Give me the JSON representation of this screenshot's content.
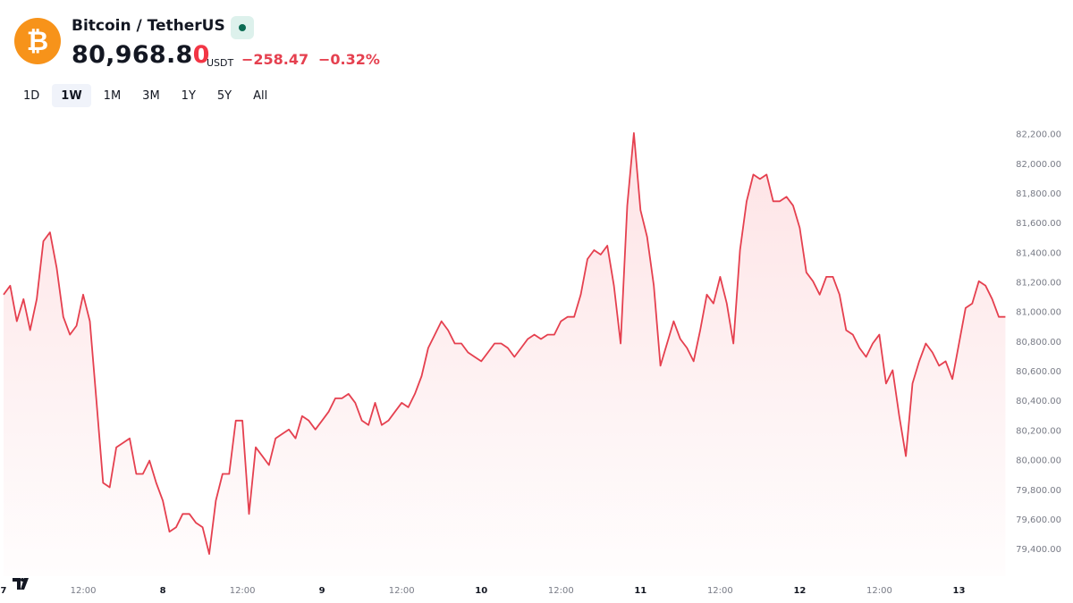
{
  "header": {
    "symbol": "Bitcoin / TetherUS",
    "logo": "₿",
    "price": "80,968.8",
    "price_tick_digit": "0",
    "currency": "USDT",
    "change": "−258.47",
    "change_percent": "−0.32%"
  },
  "ranges": {
    "items": [
      "1D",
      "1W",
      "1M",
      "3M",
      "1Y",
      "5Y",
      "All"
    ],
    "active": "1W"
  },
  "chart_data": {
    "type": "area",
    "color": "#e5404f",
    "grid": false,
    "categories": [
      "7",
      null,
      null,
      null,
      null,
      null,
      null,
      null,
      null,
      null,
      null,
      null,
      "12:00",
      null,
      null,
      null,
      null,
      null,
      null,
      null,
      null,
      null,
      null,
      null,
      "8",
      null,
      null,
      null,
      null,
      null,
      null,
      null,
      null,
      null,
      null,
      null,
      "12:00",
      null,
      null,
      null,
      null,
      null,
      null,
      null,
      null,
      null,
      null,
      null,
      "9",
      null,
      null,
      null,
      null,
      null,
      null,
      null,
      null,
      null,
      null,
      null,
      "12:00",
      null,
      null,
      null,
      null,
      null,
      null,
      null,
      null,
      null,
      null,
      null,
      "10",
      null,
      null,
      null,
      null,
      null,
      null,
      null,
      null,
      null,
      null,
      null,
      "12:00",
      null,
      null,
      null,
      null,
      null,
      null,
      null,
      null,
      null,
      null,
      null,
      "11",
      null,
      null,
      null,
      null,
      null,
      null,
      null,
      null,
      null,
      null,
      null,
      "12:00",
      null,
      null,
      null,
      null,
      null,
      null,
      null,
      null,
      null,
      null,
      null,
      "12",
      null,
      null,
      null,
      null,
      null,
      null,
      null,
      null,
      null,
      null,
      null,
      "12:00",
      null,
      null,
      null,
      null,
      null,
      null,
      null,
      null,
      null,
      null,
      null,
      "13",
      null,
      null,
      null,
      null,
      null,
      null,
      null
    ],
    "values": [
      81120,
      81180,
      80940,
      81090,
      80880,
      81090,
      81480,
      81540,
      81300,
      80970,
      80850,
      80910,
      81120,
      80940,
      80400,
      79850,
      79820,
      80090,
      80120,
      80150,
      79910,
      79910,
      80000,
      79850,
      79730,
      79520,
      79550,
      79640,
      79640,
      79580,
      79550,
      79370,
      79730,
      79910,
      79910,
      80270,
      80270,
      79640,
      80090,
      80030,
      79970,
      80150,
      80180,
      80210,
      80150,
      80300,
      80270,
      80210,
      80270,
      80330,
      80420,
      80420,
      80450,
      80390,
      80270,
      80240,
      80390,
      80240,
      80270,
      80330,
      80390,
      80360,
      80450,
      80570,
      80760,
      80850,
      80940,
      80880,
      80790,
      80790,
      80730,
      80700,
      80670,
      80730,
      80790,
      80790,
      80760,
      80700,
      80760,
      80820,
      80850,
      80820,
      80850,
      80850,
      80940,
      80970,
      80970,
      81120,
      81360,
      81420,
      81390,
      81450,
      81180,
      80790,
      81720,
      82210,
      81690,
      81510,
      81180,
      80640,
      80790,
      80940,
      80820,
      80760,
      80670,
      80880,
      81120,
      81060,
      81240,
      81060,
      80790,
      81420,
      81750,
      81930,
      81900,
      81930,
      81750,
      81750,
      81780,
      81720,
      81570,
      81270,
      81210,
      81120,
      81240,
      81240,
      81120,
      80880,
      80850,
      80760,
      80700,
      80790,
      80850,
      80520,
      80610,
      80300,
      80030,
      80520,
      80670,
      80790,
      80730,
      80640,
      80670,
      80550,
      80790,
      81030,
      81060,
      81210,
      81180,
      81090,
      80970,
      80970
    ],
    "ylim": [
      79220,
      82300
    ],
    "yticks": [
      {
        "value": 79400,
        "label": "79,400.00"
      },
      {
        "value": 79600,
        "label": "79,600.00"
      },
      {
        "value": 79800,
        "label": "79,800.00"
      },
      {
        "value": 80000,
        "label": "80,000.00"
      },
      {
        "value": 80200,
        "label": "80,200.00"
      },
      {
        "value": 80400,
        "label": "80,400.00"
      },
      {
        "value": 80600,
        "label": "80,600.00"
      },
      {
        "value": 80800,
        "label": "80,800.00"
      },
      {
        "value": 81000,
        "label": "81,000.00"
      },
      {
        "value": 81200,
        "label": "81,200.00"
      },
      {
        "value": 81400,
        "label": "81,400.00"
      },
      {
        "value": 81600,
        "label": "81,600.00"
      },
      {
        "value": 81800,
        "label": "81,800.00"
      },
      {
        "value": 82000,
        "label": "82,000.00"
      },
      {
        "value": 82200,
        "label": "82,200.00"
      }
    ]
  }
}
